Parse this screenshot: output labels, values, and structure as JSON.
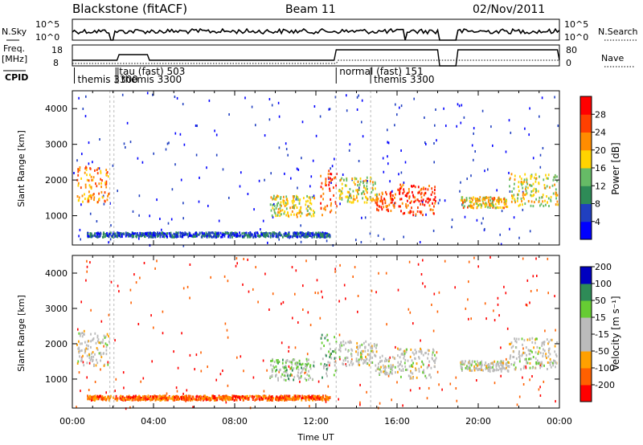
{
  "header": {
    "radar": "Blackstone (fitACF)",
    "beam": "Beam 11",
    "date": "02/Nov/2011"
  },
  "noise_panel": {
    "left_label": "N.Sky",
    "left_ticks": [
      "10^5",
      "10^0"
    ],
    "right_ticks": [
      "10^5",
      "10^0"
    ],
    "right_label": "N.Search"
  },
  "freq_panel": {
    "left_label_line1": "Freq.",
    "left_label_line2": "[MHz]",
    "left_ticks": [
      "18",
      "8"
    ],
    "right_ticks": [
      "80",
      "0"
    ],
    "right_label": "Nave"
  },
  "cpid": {
    "label": "CPID",
    "segments": [
      {
        "text": "themis 3300",
        "start_h": 0.1
      },
      {
        "text": "tau (fast) 503",
        "start_h": 2.15
      },
      {
        "text": "themis 3300",
        "start_h": 2.25
      },
      {
        "text": "normal (fast) 151",
        "start_h": 13.0
      },
      {
        "text": "themis 3300",
        "start_h": 14.7
      }
    ]
  },
  "colors": {
    "power_scale": [
      "#0000ff",
      "#2040c0",
      "#2e8b57",
      "#66bb66",
      "#ffd400",
      "#ff8c00",
      "#ff4000",
      "#ff0000"
    ],
    "velocity_scale": [
      "#ff0000",
      "#ff6000",
      "#ffa000",
      "#bbbbbb",
      "#bbbbbb",
      "#66cc33",
      "#2e8b57",
      "#0000c0"
    ]
  },
  "chart_data": [
    {
      "type": "heatmap",
      "name": "power",
      "xlabel": "",
      "ylabel": "Slant Range [km]",
      "yticks": [
        "1000",
        "2000",
        "3000",
        "4000"
      ],
      "ylim": [
        180,
        4500
      ],
      "xlim_hours": [
        0,
        24
      ],
      "colorbar_label": "Power [dB]",
      "colorbar_ticks": [
        "4",
        "8",
        "12",
        "16",
        "20",
        "24",
        "28"
      ],
      "colorbar_range": [
        0,
        32
      ],
      "bands": [
        {
          "start_h": 0.2,
          "end_h": 1.8,
          "ymin": 1400,
          "ymax": 2400,
          "level": 0.7
        },
        {
          "start_h": 0.7,
          "end_h": 12.7,
          "ymin": 430,
          "ymax": 560,
          "level": 0.2
        },
        {
          "start_h": 9.7,
          "end_h": 11.9,
          "ymin": 1000,
          "ymax": 1600,
          "level": 0.55
        },
        {
          "start_h": 12.2,
          "end_h": 13.0,
          "ymin": 1050,
          "ymax": 2300,
          "level": 0.8
        },
        {
          "start_h": 13.1,
          "end_h": 15.0,
          "ymin": 1400,
          "ymax": 2100,
          "level": 0.55
        },
        {
          "start_h": 14.9,
          "end_h": 15.9,
          "ymin": 1150,
          "ymax": 1700,
          "level": 0.8
        },
        {
          "start_h": 16.0,
          "end_h": 17.9,
          "ymin": 1050,
          "ymax": 1900,
          "level": 0.85
        },
        {
          "start_h": 19.1,
          "end_h": 21.5,
          "ymin": 1250,
          "ymax": 1550,
          "level": 0.6
        },
        {
          "start_h": 21.5,
          "end_h": 23.9,
          "ymin": 1300,
          "ymax": 2200,
          "level": 0.55
        }
      ]
    },
    {
      "type": "heatmap",
      "name": "velocity",
      "xlabel": "Time UT",
      "ylabel": "Slant Range [km]",
      "xticks": [
        "00:00",
        "04:00",
        "08:00",
        "12:00",
        "16:00",
        "20:00",
        "00:00"
      ],
      "yticks": [
        "1000",
        "2000",
        "3000",
        "4000"
      ],
      "ylim": [
        180,
        4500
      ],
      "xlim_hours": [
        0,
        24
      ],
      "colorbar_label": "Velocity [m s⁻¹]",
      "colorbar_ticks": [
        "-200",
        "-100",
        "-50",
        "-15",
        "15",
        "50",
        "100",
        "200"
      ],
      "colorbar_range": [
        -250,
        250
      ],
      "bands": [
        {
          "start_h": 0.2,
          "end_h": 1.8,
          "ymin": 1400,
          "ymax": 2400,
          "level": 0.5
        },
        {
          "start_h": 0.7,
          "end_h": 12.7,
          "ymin": 430,
          "ymax": 560,
          "level": 0.2
        },
        {
          "start_h": 9.7,
          "end_h": 11.9,
          "ymin": 1000,
          "ymax": 1600,
          "level": 0.62
        },
        {
          "start_h": 12.2,
          "end_h": 13.0,
          "ymin": 1050,
          "ymax": 2300,
          "level": 0.68
        },
        {
          "start_h": 13.1,
          "end_h": 15.0,
          "ymin": 1400,
          "ymax": 2100,
          "level": 0.5
        },
        {
          "start_h": 14.9,
          "end_h": 15.9,
          "ymin": 1150,
          "ymax": 1700,
          "level": 0.5
        },
        {
          "start_h": 16.0,
          "end_h": 17.9,
          "ymin": 1050,
          "ymax": 1900,
          "level": 0.5
        },
        {
          "start_h": 19.1,
          "end_h": 21.5,
          "ymin": 1250,
          "ymax": 1550,
          "level": 0.5
        },
        {
          "start_h": 21.5,
          "end_h": 23.9,
          "ymin": 1300,
          "ymax": 2200,
          "level": 0.5
        }
      ]
    }
  ]
}
